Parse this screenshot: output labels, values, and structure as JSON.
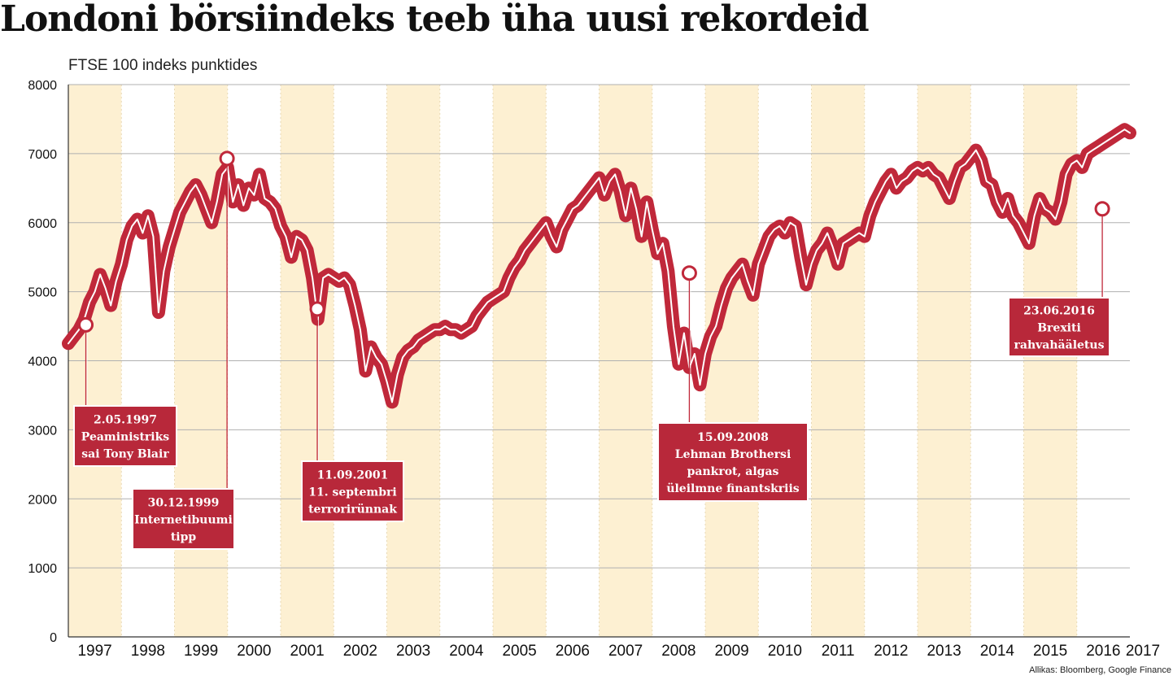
{
  "title": "Londoni börsiindeks teeb üha uusi rekordeid",
  "subtitle": "FTSE 100 indeks punktides",
  "source": "Allikas: Bloomberg, Google Finance",
  "colors": {
    "line": "#c0283a",
    "line_highlight": "#ffffff",
    "band": "#fdf0d2",
    "box": "#b8283a",
    "grid": "#b0b0b0"
  },
  "chart_data": {
    "type": "line",
    "title": "Londoni börsiindeks teeb üha uusi rekordeid",
    "ylabel": "FTSE 100 indeks punktides",
    "xlabel": "",
    "ylim": [
      0,
      8000
    ],
    "xlim": [
      1997.0,
      2017.0
    ],
    "yticks": [
      0,
      1000,
      2000,
      3000,
      4000,
      5000,
      6000,
      7000,
      8000
    ],
    "xtick_labels": [
      "1997",
      "1998",
      "1999",
      "2000",
      "2001",
      "2002",
      "2003",
      "2004",
      "2005",
      "2006",
      "2007",
      "2008",
      "2009",
      "2010",
      "2011",
      "2012",
      "2013",
      "2014",
      "2015",
      "2016",
      "2017"
    ],
    "grid": true,
    "series": [
      {
        "values": [
          [
            1997.0,
            4250
          ],
          [
            1997.1,
            4350
          ],
          [
            1997.2,
            4450
          ],
          [
            1997.3,
            4600
          ],
          [
            1997.4,
            4850
          ],
          [
            1997.5,
            5000
          ],
          [
            1997.6,
            5250
          ],
          [
            1997.7,
            5050
          ],
          [
            1997.8,
            4800
          ],
          [
            1997.9,
            5150
          ],
          [
            1998.0,
            5400
          ],
          [
            1998.1,
            5750
          ],
          [
            1998.2,
            5950
          ],
          [
            1998.3,
            6050
          ],
          [
            1998.4,
            5850
          ],
          [
            1998.5,
            6100
          ],
          [
            1998.6,
            5800
          ],
          [
            1998.7,
            4700
          ],
          [
            1998.8,
            5300
          ],
          [
            1998.9,
            5650
          ],
          [
            1999.0,
            5900
          ],
          [
            1999.1,
            6150
          ],
          [
            1999.2,
            6300
          ],
          [
            1999.3,
            6450
          ],
          [
            1999.4,
            6550
          ],
          [
            1999.5,
            6400
          ],
          [
            1999.6,
            6200
          ],
          [
            1999.7,
            6000
          ],
          [
            1999.8,
            6300
          ],
          [
            1999.9,
            6700
          ],
          [
            2000.0,
            6800
          ],
          [
            2000.1,
            6300
          ],
          [
            2000.2,
            6550
          ],
          [
            2000.3,
            6250
          ],
          [
            2000.4,
            6500
          ],
          [
            2000.5,
            6400
          ],
          [
            2000.6,
            6700
          ],
          [
            2000.7,
            6350
          ],
          [
            2000.8,
            6300
          ],
          [
            2000.9,
            6200
          ],
          [
            2001.0,
            5950
          ],
          [
            2001.1,
            5800
          ],
          [
            2001.2,
            5500
          ],
          [
            2001.3,
            5800
          ],
          [
            2001.4,
            5750
          ],
          [
            2001.5,
            5600
          ],
          [
            2001.6,
            5200
          ],
          [
            2001.7,
            4600
          ],
          [
            2001.8,
            5200
          ],
          [
            2001.9,
            5250
          ],
          [
            2002.0,
            5200
          ],
          [
            2002.1,
            5150
          ],
          [
            2002.2,
            5200
          ],
          [
            2002.3,
            5100
          ],
          [
            2002.4,
            4800
          ],
          [
            2002.5,
            4450
          ],
          [
            2002.6,
            3850
          ],
          [
            2002.7,
            4200
          ],
          [
            2002.8,
            4050
          ],
          [
            2002.9,
            3950
          ],
          [
            2003.0,
            3700
          ],
          [
            2003.1,
            3400
          ],
          [
            2003.2,
            3800
          ],
          [
            2003.3,
            4050
          ],
          [
            2003.4,
            4150
          ],
          [
            2003.5,
            4200
          ],
          [
            2003.6,
            4300
          ],
          [
            2003.7,
            4350
          ],
          [
            2003.8,
            4400
          ],
          [
            2003.9,
            4450
          ],
          [
            2004.0,
            4450
          ],
          [
            2004.1,
            4500
          ],
          [
            2004.2,
            4450
          ],
          [
            2004.3,
            4450
          ],
          [
            2004.4,
            4400
          ],
          [
            2004.5,
            4450
          ],
          [
            2004.6,
            4500
          ],
          [
            2004.7,
            4650
          ],
          [
            2004.8,
            4750
          ],
          [
            2004.9,
            4850
          ],
          [
            2005.0,
            4900
          ],
          [
            2005.1,
            4950
          ],
          [
            2005.2,
            5000
          ],
          [
            2005.3,
            5200
          ],
          [
            2005.4,
            5350
          ],
          [
            2005.5,
            5450
          ],
          [
            2005.6,
            5600
          ],
          [
            2005.7,
            5700
          ],
          [
            2005.8,
            5800
          ],
          [
            2005.9,
            5900
          ],
          [
            2006.0,
            6000
          ],
          [
            2006.1,
            5800
          ],
          [
            2006.2,
            5650
          ],
          [
            2006.3,
            5900
          ],
          [
            2006.4,
            6050
          ],
          [
            2006.5,
            6200
          ],
          [
            2006.6,
            6250
          ],
          [
            2006.7,
            6350
          ],
          [
            2006.8,
            6450
          ],
          [
            2006.9,
            6550
          ],
          [
            2007.0,
            6650
          ],
          [
            2007.1,
            6400
          ],
          [
            2007.2,
            6600
          ],
          [
            2007.3,
            6700
          ],
          [
            2007.4,
            6450
          ],
          [
            2007.5,
            6100
          ],
          [
            2007.6,
            6500
          ],
          [
            2007.7,
            6200
          ],
          [
            2007.8,
            5800
          ],
          [
            2007.9,
            6300
          ],
          [
            2008.0,
            5900
          ],
          [
            2008.1,
            5550
          ],
          [
            2008.2,
            5700
          ],
          [
            2008.3,
            5300
          ],
          [
            2008.4,
            4500
          ],
          [
            2008.5,
            3950
          ],
          [
            2008.6,
            4400
          ],
          [
            2008.7,
            3900
          ],
          [
            2008.8,
            4100
          ],
          [
            2008.9,
            3650
          ],
          [
            2009.0,
            4100
          ],
          [
            2009.1,
            4350
          ],
          [
            2009.2,
            4500
          ],
          [
            2009.3,
            4800
          ],
          [
            2009.4,
            5050
          ],
          [
            2009.5,
            5200
          ],
          [
            2009.6,
            5300
          ],
          [
            2009.7,
            5400
          ],
          [
            2009.8,
            5150
          ],
          [
            2009.9,
            4950
          ],
          [
            2010.0,
            5400
          ],
          [
            2010.1,
            5600
          ],
          [
            2010.2,
            5800
          ],
          [
            2010.3,
            5900
          ],
          [
            2010.4,
            5950
          ],
          [
            2010.5,
            5850
          ],
          [
            2010.6,
            6000
          ],
          [
            2010.7,
            5950
          ],
          [
            2010.8,
            5500
          ],
          [
            2010.9,
            5100
          ],
          [
            2011.0,
            5400
          ],
          [
            2011.1,
            5600
          ],
          [
            2011.2,
            5700
          ],
          [
            2011.3,
            5850
          ],
          [
            2011.4,
            5650
          ],
          [
            2011.5,
            5400
          ],
          [
            2011.6,
            5700
          ],
          [
            2011.7,
            5750
          ],
          [
            2011.8,
            5800
          ],
          [
            2011.9,
            5850
          ],
          [
            2012.0,
            5800
          ],
          [
            2012.1,
            6100
          ],
          [
            2012.2,
            6300
          ],
          [
            2012.3,
            6450
          ],
          [
            2012.4,
            6600
          ],
          [
            2012.5,
            6700
          ],
          [
            2012.6,
            6500
          ],
          [
            2012.7,
            6600
          ],
          [
            2012.8,
            6650
          ],
          [
            2012.9,
            6750
          ],
          [
            2013.0,
            6800
          ],
          [
            2013.1,
            6750
          ],
          [
            2013.2,
            6800
          ],
          [
            2013.3,
            6700
          ],
          [
            2013.4,
            6650
          ],
          [
            2013.5,
            6500
          ],
          [
            2013.6,
            6350
          ],
          [
            2013.7,
            6600
          ],
          [
            2013.8,
            6800
          ],
          [
            2013.9,
            6850
          ],
          [
            2014.0,
            6950
          ],
          [
            2014.1,
            7050
          ],
          [
            2014.2,
            6900
          ],
          [
            2014.3,
            6600
          ],
          [
            2014.4,
            6550
          ],
          [
            2014.5,
            6300
          ],
          [
            2014.6,
            6150
          ],
          [
            2014.7,
            6350
          ],
          [
            2014.8,
            6100
          ],
          [
            2014.9,
            6000
          ],
          [
            2015.0,
            5850
          ],
          [
            2015.1,
            5700
          ],
          [
            2015.2,
            6100
          ],
          [
            2015.3,
            6350
          ],
          [
            2015.4,
            6200
          ],
          [
            2015.5,
            6150
          ],
          [
            2015.6,
            6050
          ],
          [
            2015.7,
            6300
          ],
          [
            2015.8,
            6700
          ],
          [
            2015.9,
            6850
          ],
          [
            2016.0,
            6900
          ],
          [
            2016.1,
            6800
          ],
          [
            2016.2,
            7000
          ],
          [
            2016.3,
            7050
          ],
          [
            2016.4,
            7100
          ],
          [
            2016.5,
            7150
          ],
          [
            2016.6,
            7200
          ],
          [
            2016.7,
            7250
          ],
          [
            2016.8,
            7300
          ],
          [
            2016.9,
            7350
          ],
          [
            2017.0,
            7300
          ]
        ]
      }
    ],
    "annotations": [
      {
        "date": "2.05.1997",
        "x": 1997.33,
        "y": 4520,
        "lines": [
          "2.05.1997",
          "Peaministriks",
          "sai Tony Blair"
        ]
      },
      {
        "date": "30.12.1999",
        "x": 1999.99,
        "y": 6930,
        "lines": [
          "30.12.1999",
          "Internetibuumi",
          "tipp"
        ]
      },
      {
        "date": "11.09.2001",
        "x": 2001.69,
        "y": 4750,
        "lines": [
          "11.09.2001",
          "11. septembri",
          "terrorirünnak"
        ]
      },
      {
        "date": "15.09.2008",
        "x": 2008.7,
        "y": 5270,
        "lines": [
          "15.09.2008",
          "Lehman Brothersi",
          "pankrot, algas",
          "üleilmne finantskriis"
        ]
      },
      {
        "date": "23.06.2016",
        "x": 2016.48,
        "y": 6200,
        "lines": [
          "23.06.2016",
          "Brexiti",
          "rahvahääletus"
        ]
      }
    ]
  }
}
